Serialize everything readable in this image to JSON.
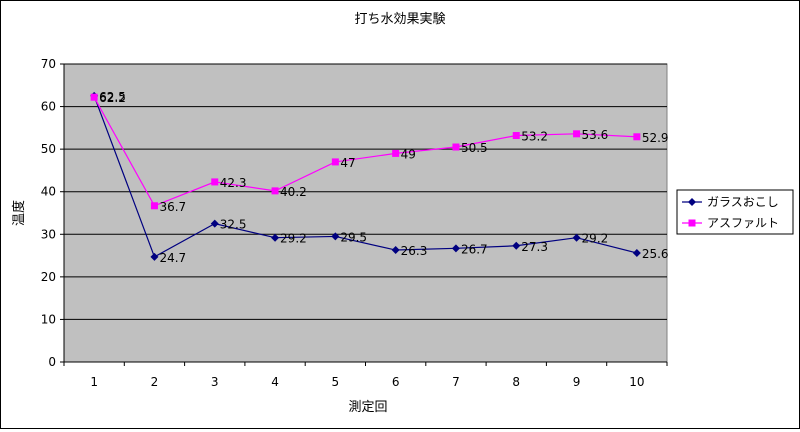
{
  "chart_data": {
    "type": "line",
    "title": "打ち水効果実験",
    "xlabel": "測定回",
    "ylabel": "温度",
    "categories": [
      "1",
      "2",
      "3",
      "4",
      "5",
      "6",
      "7",
      "8",
      "9",
      "10"
    ],
    "ylim": [
      0,
      70
    ],
    "yticks": [
      "0",
      "10",
      "20",
      "30",
      "40",
      "50",
      "60",
      "70"
    ],
    "grid": true,
    "legend_position": "right",
    "plot_background": "#c0c0c0",
    "series": [
      {
        "name": "ガラスおこし",
        "color": "#000080",
        "marker": "diamond",
        "values": [
          62.5,
          24.7,
          32.5,
          29.2,
          29.5,
          26.3,
          26.7,
          27.3,
          29.2,
          25.6
        ],
        "labels": [
          "62.5",
          "24.7",
          "32.5",
          "29.2",
          "29.5",
          "26.3",
          "26.7",
          "27.3",
          "29.2",
          "25.6"
        ]
      },
      {
        "name": "アスファルト",
        "color": "#ff00ff",
        "marker": "square",
        "values": [
          62.2,
          36.7,
          42.3,
          40.2,
          47,
          49,
          50.5,
          53.2,
          53.6,
          52.9
        ],
        "labels": [
          "62.2",
          "36.7",
          "42.3",
          "40.2",
          "47",
          "49",
          "50.5",
          "53.2",
          "53.6",
          "52.9"
        ]
      }
    ]
  }
}
